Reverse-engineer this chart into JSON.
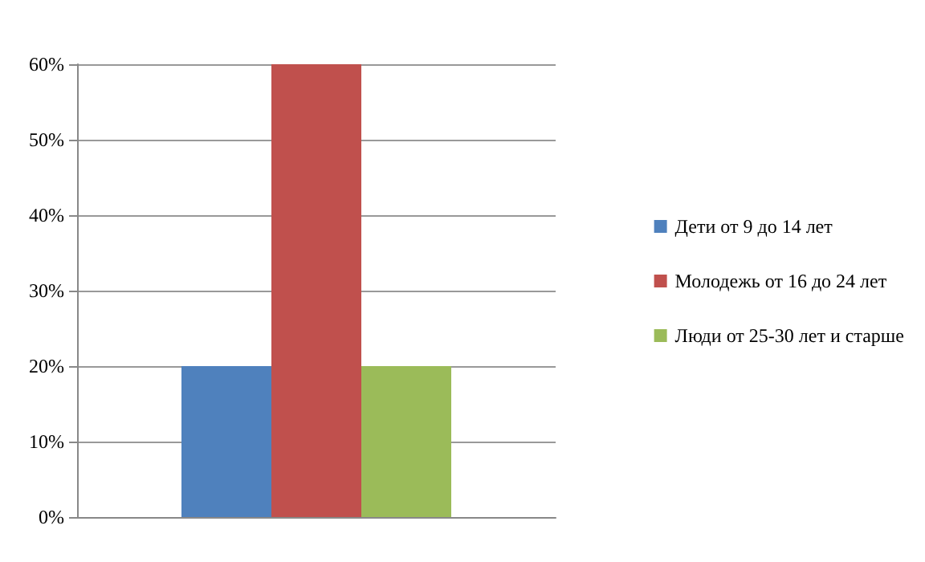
{
  "chart_data": {
    "type": "bar",
    "categories": [
      null
    ],
    "series": [
      {
        "name": "Дети от 9 до 14 лет",
        "color": "#4f81bd",
        "values": [
          20
        ]
      },
      {
        "name": "Молодежь от 16 до 24 лет",
        "color": "#c0504d",
        "values": [
          60
        ]
      },
      {
        "name": "Люди от 25-30 лет и старше",
        "color": "#9bbb59",
        "values": [
          20
        ]
      }
    ],
    "ylim": [
      0,
      60
    ],
    "yticks": [
      {
        "value": 0,
        "label": "0%"
      },
      {
        "value": 10,
        "label": "10%"
      },
      {
        "value": 20,
        "label": "20%"
      },
      {
        "value": 30,
        "label": "30%"
      },
      {
        "value": 40,
        "label": "40%"
      },
      {
        "value": 50,
        "label": "50%"
      },
      {
        "value": 60,
        "label": "60%"
      }
    ],
    "grid": "y",
    "legend": "right"
  }
}
